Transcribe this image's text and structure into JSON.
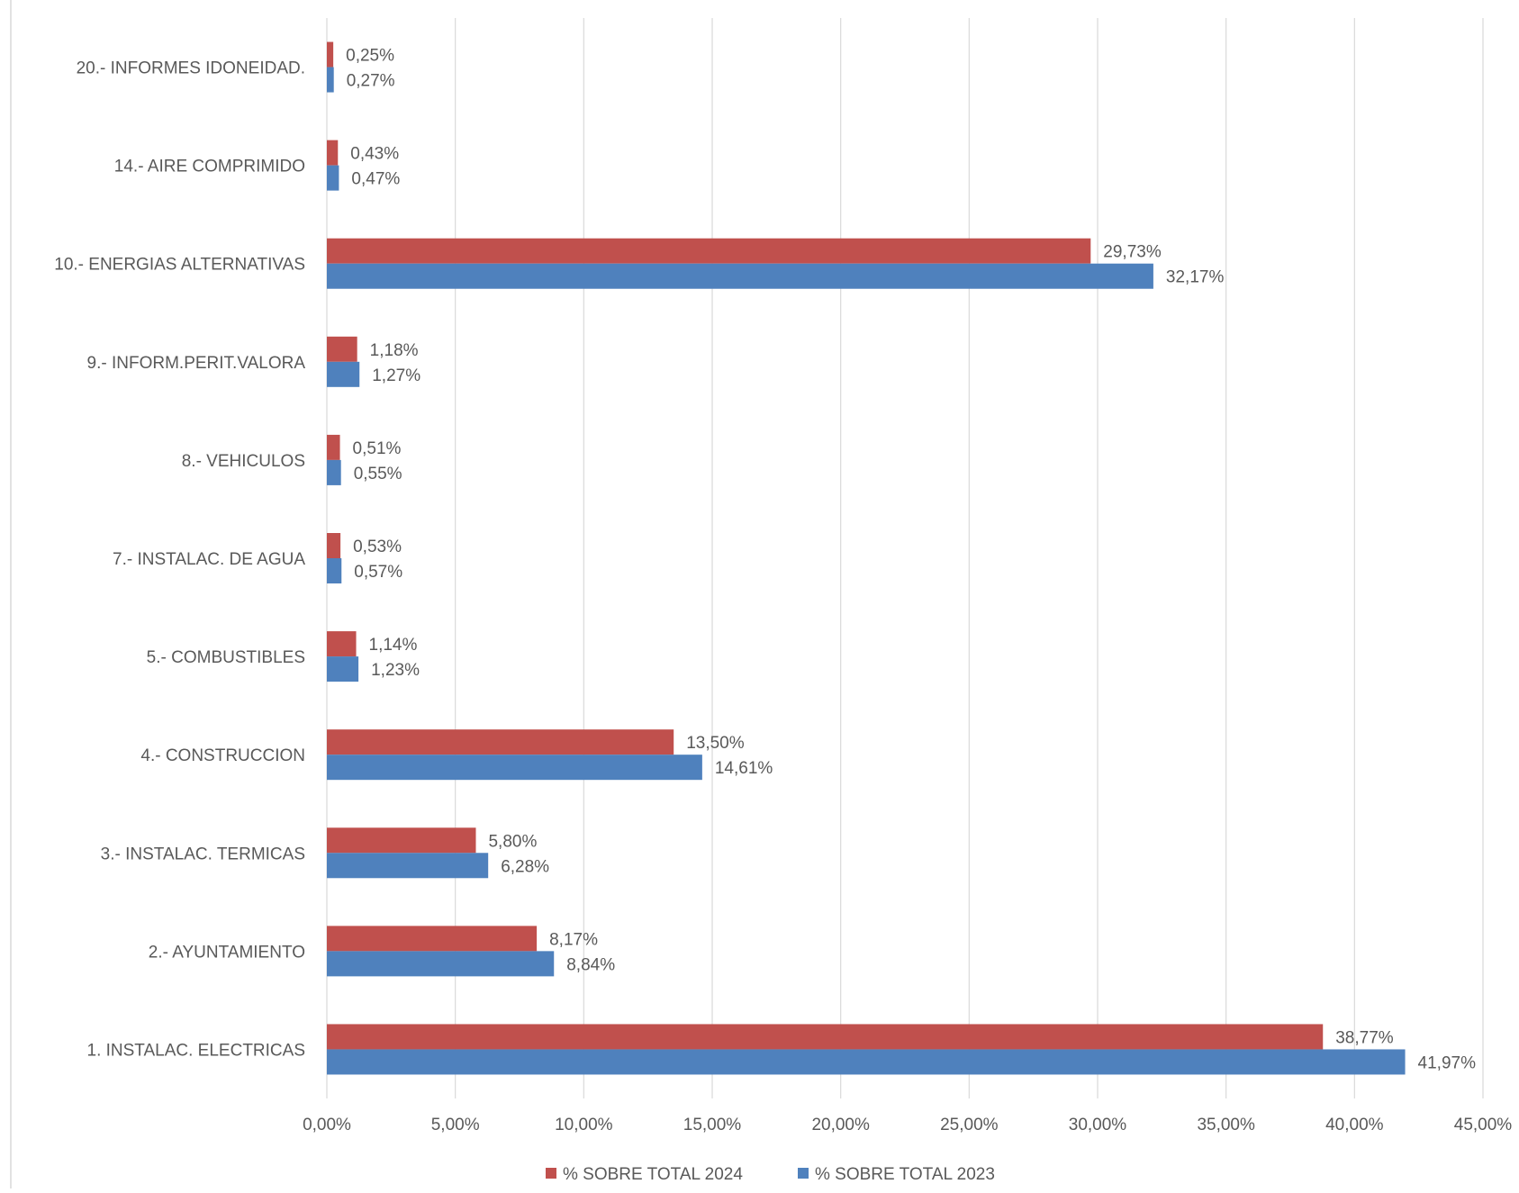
{
  "chart_data": {
    "type": "bar",
    "orientation": "horizontal",
    "categories": [
      "20.- INFORMES IDONEIDAD.",
      "14.- AIRE COMPRIMIDO",
      "10.- ENERGIAS ALTERNATIVAS",
      "9.- INFORM.PERIT.VALORA",
      "8.- VEHICULOS",
      "7.- INSTALAC. DE AGUA",
      "5.- COMBUSTIBLES",
      "4.- CONSTRUCCION",
      "3.- INSTALAC. TERMICAS",
      "2.- AYUNTAMIENTO",
      "1. INSTALAC. ELECTRICAS"
    ],
    "series": [
      {
        "name": "% SOBRE TOTAL 2024",
        "color": "#C0504D",
        "values": [
          0.25,
          0.43,
          29.73,
          1.18,
          0.51,
          0.53,
          1.14,
          13.5,
          5.8,
          8.17,
          38.77
        ],
        "labels": [
          "0,25%",
          "0,43%",
          "29,73%",
          "1,18%",
          "0,51%",
          "0,53%",
          "1,14%",
          "13,50%",
          "5,80%",
          "8,17%",
          "38,77%"
        ]
      },
      {
        "name": "% SOBRE TOTAL 2023",
        "color": "#4F81BD",
        "values": [
          0.27,
          0.47,
          32.17,
          1.27,
          0.55,
          0.57,
          1.23,
          14.61,
          6.28,
          8.84,
          41.97
        ],
        "labels": [
          "0,27%",
          "0,47%",
          "32,17%",
          "1,27%",
          "0,55%",
          "0,57%",
          "1,23%",
          "14,61%",
          "6,28%",
          "8,84%",
          "41,97%"
        ]
      }
    ],
    "xlim": [
      0,
      45
    ],
    "xticks": [
      0,
      5,
      10,
      15,
      20,
      25,
      30,
      35,
      40,
      45
    ],
    "xtick_labels": [
      "0,00%",
      "5,00%",
      "10,00%",
      "15,00%",
      "20,00%",
      "25,00%",
      "30,00%",
      "35,00%",
      "40,00%",
      "45,00%"
    ],
    "grid": true,
    "legend_position": "bottom",
    "title": "",
    "xlabel": "",
    "ylabel": ""
  }
}
